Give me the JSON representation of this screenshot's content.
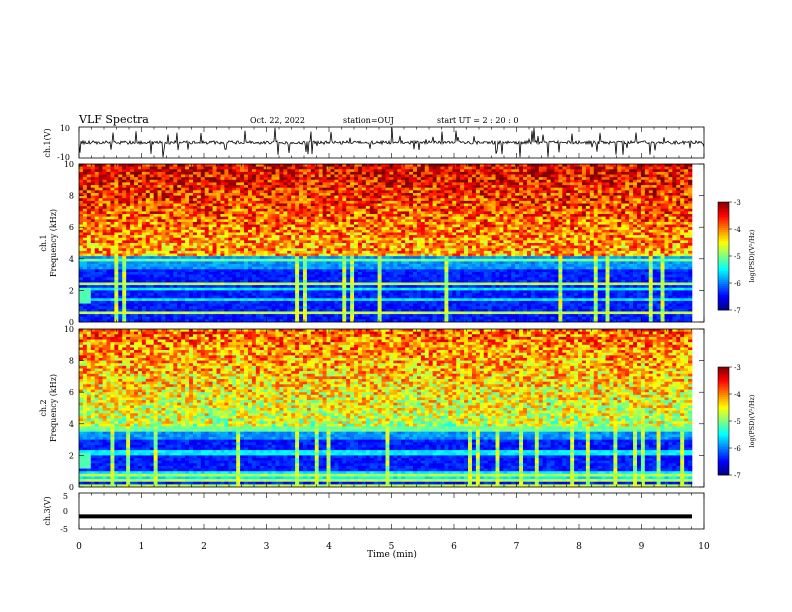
{
  "header": {
    "title": "VLF Spectra",
    "date": "Oct. 22, 2022",
    "station": "station=OUJ",
    "start": "start  UT =   2 : 20 : 0"
  },
  "chart_data": [
    {
      "type": "line",
      "name": "ch1-waveform",
      "ylabel": "ch.1(V)",
      "ylim": [
        -10,
        10
      ],
      "yticks": [
        "10",
        "-10"
      ],
      "xlim": [
        0,
        10
      ],
      "baseline": 0,
      "description_level": "noisy waveform with spikes to ±10 V"
    },
    {
      "type": "heatmap",
      "name": "ch1-spectrogram",
      "ylabel": "ch.1\nFrequency  (kHz)",
      "ylabel_lines": [
        "ch.1",
        "Frequency  (kHz)"
      ],
      "ylim": [
        0,
        10
      ],
      "yticks": [
        "0",
        "2",
        "4",
        "6",
        "8",
        "10"
      ],
      "xlim": [
        0,
        10
      ],
      "colorbar": {
        "label": "log(PSD)(V²/Hz)",
        "range": [
          -7,
          -3
        ],
        "ticks": [
          "-3",
          "-4",
          "-5",
          "-6",
          "-7"
        ]
      }
    },
    {
      "type": "heatmap",
      "name": "ch2-spectrogram",
      "ylabel": "ch.2\nFrequency  (kHz)",
      "ylabel_lines": [
        "ch.2",
        "Frequency  (kHz)"
      ],
      "ylim": [
        0,
        10
      ],
      "yticks": [
        "0",
        "2",
        "4",
        "6",
        "8",
        "10"
      ],
      "xlim": [
        0,
        10
      ],
      "colorbar": {
        "label": "log(PSD)(V²/Hz)",
        "range": [
          -7,
          -3
        ],
        "ticks": [
          "-3",
          "-4",
          "-5",
          "-6",
          "-7"
        ]
      }
    },
    {
      "type": "line",
      "name": "ch3-waveform",
      "ylabel": "ch.3(V)",
      "ylim": [
        -5,
        5
      ],
      "yticks": [
        "5",
        "0",
        "-5"
      ],
      "xlim": [
        0,
        10
      ],
      "baseline": -1.5
    }
  ],
  "xaxis": {
    "label": "Time  (min)",
    "ticks": [
      "0",
      "1",
      "2",
      "3",
      "4",
      "5",
      "6",
      "7",
      "8",
      "9",
      "10"
    ]
  },
  "colors": {
    "low": "#000080",
    "mid": "#00ff00",
    "high": "#ff0000"
  }
}
